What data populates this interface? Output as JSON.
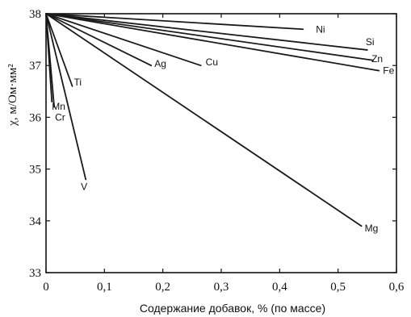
{
  "chart_data": {
    "type": "line",
    "xlabel": "Содержание добавок, % (по массе)",
    "ylabel": "χ, м/Ом·мм²",
    "xlim": [
      0,
      0.6
    ],
    "ylim": [
      33,
      38
    ],
    "x_ticks": [
      "0",
      "0,1",
      "0,2",
      "0,3",
      "0,4",
      "0,5",
      "0,6"
    ],
    "y_ticks": [
      "33",
      "34",
      "35",
      "36",
      "37",
      "38"
    ],
    "grid": false,
    "series": [
      {
        "name": "Ni",
        "x": [
          0,
          0.44
        ],
        "y": [
          38,
          37.7
        ]
      },
      {
        "name": "Si",
        "x": [
          0,
          0.55
        ],
        "y": [
          38,
          37.3
        ]
      },
      {
        "name": "Zn",
        "x": [
          0,
          0.56
        ],
        "y": [
          38,
          37.1
        ]
      },
      {
        "name": "Fe",
        "x": [
          0,
          0.57
        ],
        "y": [
          38,
          36.9
        ]
      },
      {
        "name": "Cu",
        "x": [
          0,
          0.265
        ],
        "y": [
          38,
          37.0
        ]
      },
      {
        "name": "Ag",
        "x": [
          0,
          0.18
        ],
        "y": [
          38,
          37.0
        ]
      },
      {
        "name": "Mg",
        "x": [
          0,
          0.54
        ],
        "y": [
          38,
          33.9
        ]
      },
      {
        "name": "Ti",
        "x": [
          0,
          0.045
        ],
        "y": [
          38,
          36.6
        ]
      },
      {
        "name": "Mn",
        "x": [
          0,
          0.01
        ],
        "y": [
          38,
          36.3
        ]
      },
      {
        "name": "Cr",
        "x": [
          0,
          0.014
        ],
        "y": [
          38,
          36.2
        ]
      },
      {
        "name": "V",
        "x": [
          0,
          0.068
        ],
        "y": [
          38,
          34.8
        ]
      }
    ]
  }
}
